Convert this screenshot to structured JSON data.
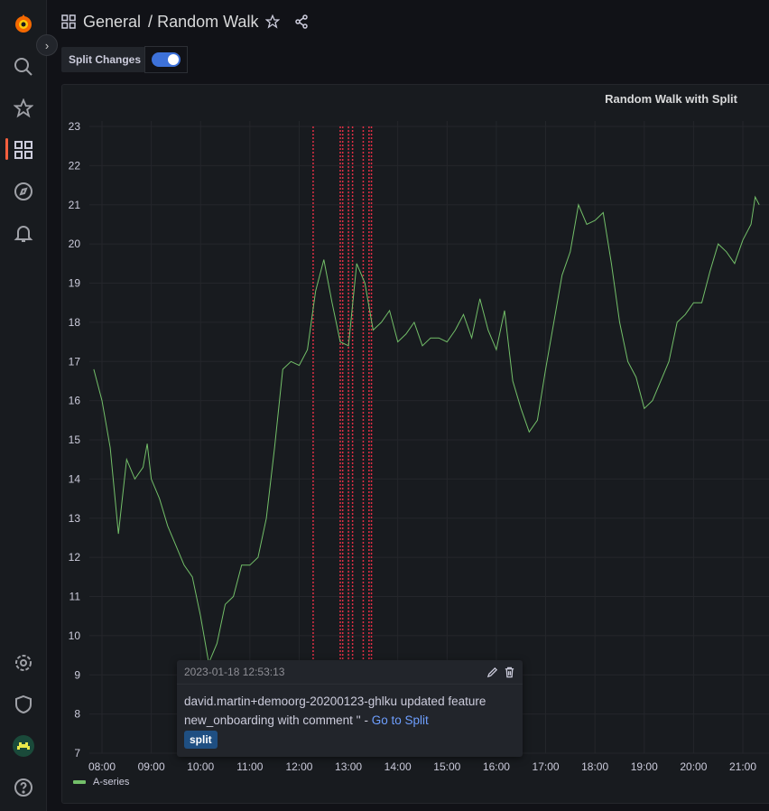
{
  "header": {
    "folder": "General",
    "separator": "/",
    "dashboard": "Random Walk"
  },
  "variable": {
    "label": "Split Changes",
    "toggle_on": true
  },
  "panel": {
    "title": "Random Walk with Split"
  },
  "legend": {
    "series": "A-series",
    "color": "#73bf69"
  },
  "tooltip": {
    "time": "2023-01-18 12:53:13",
    "text": "david.martin+demoorg-20200123-ghlku updated feature new_onboarding with comment '' - ",
    "link": "Go to Split",
    "tag": "split"
  },
  "colors": {
    "accent": "#f55f3e",
    "series": "#73bf69",
    "annotation": "#e02f44",
    "toggle": "#3d71d9"
  },
  "chart_data": {
    "type": "line",
    "title": "Random Walk with Split",
    "x_ticks": [
      "08:00",
      "09:00",
      "10:00",
      "11:00",
      "12:00",
      "13:00",
      "14:00",
      "15:00",
      "16:00",
      "17:00",
      "18:00",
      "19:00",
      "20:00",
      "21:00"
    ],
    "y_ticks": [
      7,
      8,
      9,
      10,
      11,
      12,
      13,
      14,
      15,
      16,
      17,
      18,
      19,
      20,
      21,
      22,
      23
    ],
    "ylim": [
      7,
      23
    ],
    "xlim": [
      "07:45",
      "21:30"
    ],
    "grid": true,
    "legend": "bottom-left",
    "series": [
      {
        "name": "A-series",
        "points": [
          [
            "07:50",
            16.8
          ],
          [
            "08:00",
            16.0
          ],
          [
            "08:10",
            14.8
          ],
          [
            "08:20",
            12.6
          ],
          [
            "08:30",
            14.5
          ],
          [
            "08:40",
            14.0
          ],
          [
            "08:50",
            14.3
          ],
          [
            "08:55",
            14.9
          ],
          [
            "09:00",
            14.0
          ],
          [
            "09:10",
            13.5
          ],
          [
            "09:20",
            12.8
          ],
          [
            "09:30",
            12.3
          ],
          [
            "09:40",
            11.8
          ],
          [
            "09:50",
            11.5
          ],
          [
            "10:00",
            10.5
          ],
          [
            "10:10",
            9.3
          ],
          [
            "10:20",
            9.8
          ],
          [
            "10:30",
            10.8
          ],
          [
            "10:40",
            11.0
          ],
          [
            "10:50",
            11.8
          ],
          [
            "11:00",
            11.8
          ],
          [
            "11:10",
            12.0
          ],
          [
            "11:20",
            13.0
          ],
          [
            "11:30",
            14.8
          ],
          [
            "11:40",
            16.8
          ],
          [
            "11:50",
            17.0
          ],
          [
            "12:00",
            16.9
          ],
          [
            "12:10",
            17.3
          ],
          [
            "12:20",
            18.8
          ],
          [
            "12:30",
            19.6
          ],
          [
            "12:40",
            18.5
          ],
          [
            "12:50",
            17.5
          ],
          [
            "13:00",
            17.4
          ],
          [
            "13:10",
            19.5
          ],
          [
            "13:20",
            19.0
          ],
          [
            "13:30",
            17.8
          ],
          [
            "13:40",
            18.0
          ],
          [
            "13:50",
            18.3
          ],
          [
            "14:00",
            17.5
          ],
          [
            "14:10",
            17.7
          ],
          [
            "14:20",
            18.0
          ],
          [
            "14:30",
            17.4
          ],
          [
            "14:40",
            17.6
          ],
          [
            "14:50",
            17.6
          ],
          [
            "15:00",
            17.5
          ],
          [
            "15:10",
            17.8
          ],
          [
            "15:20",
            18.2
          ],
          [
            "15:30",
            17.6
          ],
          [
            "15:40",
            18.6
          ],
          [
            "15:50",
            17.8
          ],
          [
            "16:00",
            17.3
          ],
          [
            "16:10",
            18.3
          ],
          [
            "16:20",
            16.5
          ],
          [
            "16:30",
            15.8
          ],
          [
            "16:40",
            15.2
          ],
          [
            "16:50",
            15.5
          ],
          [
            "17:00",
            16.8
          ],
          [
            "17:10",
            18.0
          ],
          [
            "17:20",
            19.2
          ],
          [
            "17:30",
            19.8
          ],
          [
            "17:40",
            21.0
          ],
          [
            "17:50",
            20.5
          ],
          [
            "18:00",
            20.6
          ],
          [
            "18:10",
            20.8
          ],
          [
            "18:20",
            19.5
          ],
          [
            "18:30",
            18.0
          ],
          [
            "18:40",
            17.0
          ],
          [
            "18:50",
            16.6
          ],
          [
            "19:00",
            15.8
          ],
          [
            "19:10",
            16.0
          ],
          [
            "19:20",
            16.5
          ],
          [
            "19:30",
            17.0
          ],
          [
            "19:40",
            18.0
          ],
          [
            "19:50",
            18.2
          ],
          [
            "20:00",
            18.5
          ],
          [
            "20:10",
            18.5
          ],
          [
            "20:20",
            19.3
          ],
          [
            "20:30",
            20.0
          ],
          [
            "20:40",
            19.8
          ],
          [
            "20:50",
            19.5
          ],
          [
            "21:00",
            20.1
          ],
          [
            "21:10",
            20.5
          ],
          [
            "21:15",
            21.2
          ],
          [
            "21:20",
            21.0
          ]
        ]
      }
    ],
    "annotations": [
      "12:17",
      "12:50",
      "12:53",
      "13:00",
      "13:05",
      "13:18",
      "13:25",
      "13:28"
    ]
  }
}
